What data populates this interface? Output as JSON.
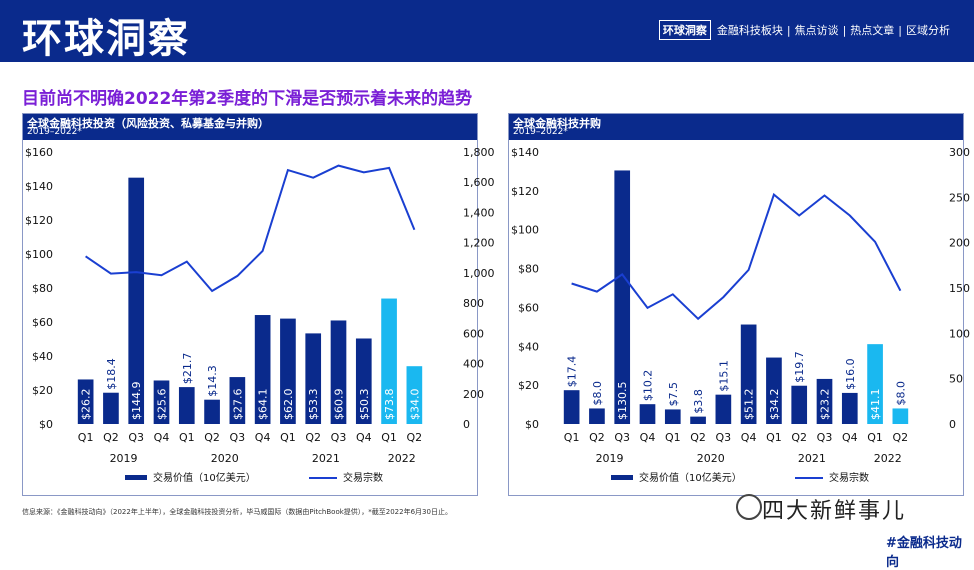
{
  "header": {
    "title": "环球洞察",
    "nav_active": "环球洞察",
    "nav": [
      "金融科技板块",
      "焦点访谈",
      "热点文章",
      "区域分析"
    ],
    "nav_separator": "|"
  },
  "subtitle": "目前尚不明确2022年第2季度的下滑是否预示着未来的趋势",
  "source_note": "信息来源：《金融科技动向》（2022年上半年），全球金融科技投资分析，毕马威国际（数据由PitchBook提供），*截至2022年6月30日止。",
  "watermark": "四大新鲜事儿",
  "corner_tag": "#金融科技动向",
  "colors": {
    "bar": "#0a2a8c",
    "bar_highlight": "#1ab8f0",
    "line": "#1a3fd1",
    "header_bg": "#0a2a8c",
    "subtitle": "#7a1fd6"
  },
  "chart_data": [
    {
      "type": "bar",
      "title": "全球金融科技投资（风险投资、私募基金与并购）",
      "subtitle": "2019–2022*",
      "categories": [
        "Q1",
        "Q2",
        "Q3",
        "Q4",
        "Q1",
        "Q2",
        "Q3",
        "Q4",
        "Q1",
        "Q2",
        "Q3",
        "Q4",
        "Q1",
        "Q2"
      ],
      "years": [
        {
          "label": "2019",
          "span": [
            0,
            3
          ]
        },
        {
          "label": "2020",
          "span": [
            4,
            7
          ]
        },
        {
          "label": "2021",
          "span": [
            8,
            11
          ]
        },
        {
          "label": "2022",
          "span": [
            12,
            13
          ]
        }
      ],
      "ylim": [
        0,
        160
      ],
      "y_ticks": [
        "$0",
        "$20",
        "$40",
        "$60",
        "$80",
        "$100",
        "$120",
        "$140",
        "$160"
      ],
      "y2lim": [
        0,
        1800
      ],
      "y2_ticks": [
        "0",
        "200",
        "400",
        "600",
        "800",
        "1,000",
        "1,200",
        "1,400",
        "1,600",
        "1,800"
      ],
      "series": [
        {
          "name": "交易价值（10亿美元）",
          "values": [
            26.2,
            18.4,
            144.9,
            25.6,
            21.7,
            14.3,
            27.6,
            64.1,
            62.0,
            53.3,
            60.9,
            50.3,
            73.8,
            34.0
          ],
          "labels": [
            "$26.2",
            "$18.4",
            "$144.9",
            "$25.6",
            "$21.7",
            "$14.3",
            "$27.6",
            "$64.1",
            "$62.0",
            "$53.3",
            "$60.9",
            "$50.3",
            "$73.8",
            "$34.0"
          ],
          "highlight": [
            12,
            13
          ]
        },
        {
          "name": "交易宗数",
          "values": [
            1110,
            995,
            1005,
            985,
            1075,
            880,
            980,
            1145,
            1680,
            1630,
            1710,
            1665,
            1695,
            1285
          ]
        }
      ]
    },
    {
      "type": "bar",
      "title": "全球金融科技并购",
      "subtitle": "2019–2022*",
      "categories": [
        "Q1",
        "Q2",
        "Q3",
        "Q4",
        "Q1",
        "Q2",
        "Q3",
        "Q4",
        "Q1",
        "Q2",
        "Q3",
        "Q4",
        "Q1",
        "Q2"
      ],
      "years": [
        {
          "label": "2019",
          "span": [
            0,
            3
          ]
        },
        {
          "label": "2020",
          "span": [
            4,
            7
          ]
        },
        {
          "label": "2021",
          "span": [
            8,
            11
          ]
        },
        {
          "label": "2022",
          "span": [
            12,
            13
          ]
        }
      ],
      "ylim": [
        0,
        140
      ],
      "y_ticks": [
        "$0",
        "$20",
        "$40",
        "$60",
        "$80",
        "$100",
        "$120",
        "$140"
      ],
      "y2lim": [
        0,
        300
      ],
      "y2_ticks": [
        "0",
        "50",
        "100",
        "150",
        "200",
        "250",
        "300"
      ],
      "series": [
        {
          "name": "交易价值（10亿美元）",
          "values": [
            17.4,
            8.0,
            130.5,
            10.2,
            7.5,
            3.8,
            15.1,
            51.2,
            34.2,
            19.7,
            23.2,
            16.0,
            41.1,
            8.0
          ],
          "labels": [
            "$17.4",
            "$8.0",
            "$130.5",
            "$10.2",
            "$7.5",
            "$3.8",
            "$15.1",
            "$51.2",
            "$34.2",
            "$19.7",
            "$23.2",
            "$16.0",
            "$41.1",
            "$8.0"
          ],
          "highlight": [
            12,
            13
          ]
        },
        {
          "name": "交易宗数",
          "values": [
            155,
            146,
            165,
            128,
            143,
            116,
            140,
            170,
            253,
            230,
            252,
            230,
            201,
            147
          ]
        }
      ]
    }
  ]
}
